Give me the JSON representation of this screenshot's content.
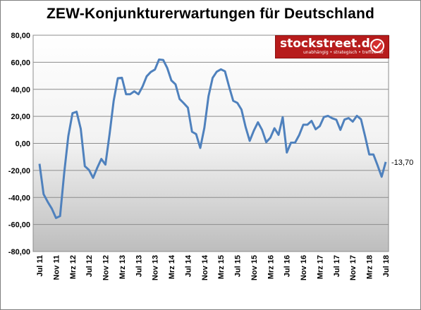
{
  "title": "ZEW-Konjunkturerwartungen für Deutschland",
  "logo": {
    "brand": "stockstreet.de",
    "slogan": "unabhängig • strategisch • treffsicher"
  },
  "colors": {
    "line": "#4f81bd",
    "logo_red": "#b71c1c"
  },
  "chart_data": {
    "type": "line",
    "title": "ZEW-Konjunkturerwartungen für Deutschland",
    "xlabel": "",
    "ylabel": "",
    "ylim": [
      -80,
      80
    ],
    "ytick_labels": [
      "80,00",
      "60,00",
      "40,00",
      "20,00",
      "0,00",
      "-20,00",
      "-40,00",
      "-60,00",
      "-80,00"
    ],
    "xtick_labels": [
      "Jul 11",
      "Nov 11",
      "Mrz 12",
      "Jul 12",
      "Nov 12",
      "Mrz 13",
      "Jul 13",
      "Nov 13",
      "Mrz 14",
      "Jul 14",
      "Nov 14",
      "Mrz 15",
      "Jul 15",
      "Nov 15",
      "Mrz 16",
      "Jul 16",
      "Nov 16",
      "Mrz 17",
      "Jul 17",
      "Nov 17",
      "Mrz 18",
      "Jul 18"
    ],
    "grid": true,
    "end_label": "-13,70",
    "series": [
      {
        "name": "",
        "values": [
          -15.1,
          -37.6,
          -43.3,
          -48.3,
          -55.2,
          -53.8,
          -21.6,
          5.4,
          22.3,
          23.4,
          10.8,
          -16.9,
          -19.6,
          -25.5,
          -18.2,
          -11.5,
          -15.7,
          6.9,
          31.5,
          48.2,
          48.5,
          36.3,
          36.4,
          38.5,
          36.3,
          42.0,
          49.6,
          52.8,
          54.6,
          62.0,
          61.7,
          55.7,
          46.6,
          43.7,
          32.8,
          29.7,
          26.4,
          8.6,
          6.9,
          -3.4,
          11.5,
          34.9,
          48.4,
          53.0,
          54.8,
          53.3,
          41.9,
          31.5,
          29.9,
          25.0,
          12.1,
          1.9,
          9.5,
          15.6,
          10.0,
          0.9,
          4.1,
          11.2,
          6.3,
          19.4,
          -6.8,
          0.5,
          0.5,
          6.2,
          13.8,
          13.8,
          16.6,
          10.4,
          12.8,
          19.5,
          20.3,
          18.6,
          17.5,
          10.0,
          17.6,
          18.7,
          16.1,
          20.4,
          17.8,
          5.1,
          -8.2,
          -8.2,
          -16.1,
          -24.7,
          -13.7
        ]
      }
    ]
  }
}
